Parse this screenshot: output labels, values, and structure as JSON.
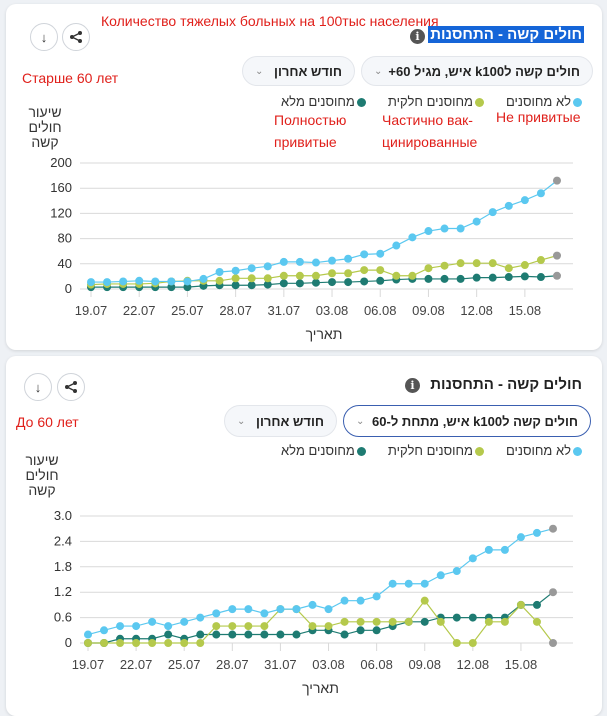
{
  "annotations": {
    "top_title_ru": "Количество тяжелых больных на 100тыс населения",
    "over60": "Старше 60 лет",
    "under60": "До 60 лет",
    "full_ru": [
      "Полностью",
      "привитые"
    ],
    "partial_ru": [
      "Частично вак-",
      "цинированные"
    ],
    "none_ru": "Не привитые"
  },
  "colors": {
    "unvacc": "#5bc8f0",
    "partial": "#b5c94c",
    "full": "#1e7b72",
    "last": "#999999",
    "grid": "#d9d9d9"
  },
  "charts": [
    {
      "title": "חולים קשה - התחסנות",
      "info_icon": "i",
      "download_icon": "↓",
      "filter": "חולים קשה לk100 איש, מגיל 60+",
      "period": "חודש אחרון",
      "ylabel": [
        "שיעור",
        "חולים",
        "קשה"
      ],
      "legend": [
        "לא מחוסנים",
        "מחוסנים חלקית",
        "מחוסנים מלא"
      ]
    },
    {
      "title": "חולים קשה - התחסנות",
      "info_icon": "i",
      "download_icon": "↓",
      "filter": "חולים קשה לk100 איש, מתחת ל-60",
      "period": "חודש אחרון",
      "ylabel": [
        "שיעור",
        "חולים",
        "קשה"
      ],
      "legend": [
        "לא מחוסנים",
        "מחוסנים חלקית",
        "מחוסנים מלא"
      ]
    }
  ],
  "chart_data": [
    {
      "type": "line",
      "title": "חולים קשה - התחסנות",
      "xlabel": "תאריך",
      "ylabel": "שיעור חולים קשה",
      "ylim": [
        0,
        200
      ],
      "yticks": [
        0,
        40,
        80,
        120,
        160,
        200
      ],
      "ytick_labels": [
        "0",
        "40",
        "80",
        "120",
        "160",
        "200"
      ],
      "xtick_labels": [
        "19.07",
        "22.07",
        "25.07",
        "28.07",
        "31.07",
        "03.08",
        "06.08",
        "09.08",
        "12.08",
        "15.08"
      ],
      "x": [
        "19.07",
        "20.07",
        "21.07",
        "22.07",
        "23.07",
        "24.07",
        "25.07",
        "26.07",
        "27.07",
        "28.07",
        "29.07",
        "30.07",
        "31.07",
        "01.08",
        "02.08",
        "03.08",
        "04.08",
        "05.08",
        "06.08",
        "07.08",
        "08.08",
        "09.08",
        "10.08",
        "11.08",
        "12.08",
        "13.08",
        "14.08",
        "15.08",
        "16.08",
        "17.08"
      ],
      "legend_position": "top-right",
      "series": [
        {
          "name": "לא מחוסנים",
          "color": "#5bc8f0",
          "values": [
            11,
            11,
            12,
            13,
            12,
            12,
            12,
            16,
            27,
            29,
            33,
            36,
            43,
            43,
            42,
            45,
            48,
            55,
            56,
            69,
            82,
            92,
            96,
            96,
            107,
            122,
            132,
            141,
            152,
            172
          ]
        },
        {
          "name": "מחוסנים חלקית",
          "color": "#b5c94c",
          "values": [
            7,
            8,
            8,
            8,
            9,
            12,
            13,
            13,
            13,
            17,
            17,
            17,
            21,
            21,
            21,
            25,
            25,
            30,
            30,
            21,
            21,
            33,
            37,
            41,
            41,
            41,
            33,
            38,
            46,
            53
          ]
        },
        {
          "name": "מחוסנים מלא",
          "color": "#1e7b72",
          "values": [
            3,
            3,
            3,
            3,
            3,
            3,
            3,
            5,
            6,
            6,
            6,
            7,
            9,
            9,
            10,
            11,
            11,
            12,
            13,
            15,
            16,
            16,
            16,
            16,
            18,
            18,
            19,
            20,
            19,
            21
          ]
        }
      ]
    },
    {
      "type": "line",
      "title": "חולים קשה - התחסנות",
      "xlabel": "תאריך",
      "ylabel": "שיעור חולים קשה",
      "ylim": [
        0,
        3.0
      ],
      "yticks": [
        0,
        0.6,
        1.2,
        1.8,
        2.4,
        3.0
      ],
      "ytick_labels": [
        "0",
        "0.6",
        "1.2",
        "1.8",
        "2.4",
        "3.0"
      ],
      "xtick_labels": [
        "19.07",
        "22.07",
        "25.07",
        "28.07",
        "31.07",
        "03.08",
        "06.08",
        "09.08",
        "12.08",
        "15.08"
      ],
      "x": [
        "19.07",
        "20.07",
        "21.07",
        "22.07",
        "23.07",
        "24.07",
        "25.07",
        "26.07",
        "27.07",
        "28.07",
        "29.07",
        "30.07",
        "31.07",
        "01.08",
        "02.08",
        "03.08",
        "04.08",
        "05.08",
        "06.08",
        "07.08",
        "08.08",
        "09.08",
        "10.08",
        "11.08",
        "12.08",
        "13.08",
        "14.08",
        "15.08",
        "16.08",
        "17.08"
      ],
      "legend_position": "top-right",
      "series": [
        {
          "name": "לא מחוסנים",
          "color": "#5bc8f0",
          "values": [
            0.2,
            0.3,
            0.4,
            0.4,
            0.5,
            0.4,
            0.5,
            0.6,
            0.7,
            0.8,
            0.8,
            0.7,
            0.8,
            0.8,
            0.9,
            0.8,
            1.0,
            1.0,
            1.1,
            1.4,
            1.4,
            1.4,
            1.6,
            1.7,
            2.0,
            2.2,
            2.2,
            2.5,
            2.6,
            2.7
          ]
        },
        {
          "name": "מחוסנים חלקית",
          "color": "#b5c94c",
          "values": [
            0,
            0,
            0,
            0,
            0,
            0,
            0,
            0,
            0.4,
            0.4,
            0.4,
            0.4,
            0.8,
            0.8,
            0.4,
            0.4,
            0.5,
            0.5,
            0.5,
            0.5,
            0.5,
            1.0,
            0.5,
            0,
            0,
            0.5,
            0.5,
            0.9,
            0.5,
            0
          ]
        },
        {
          "name": "מחוסנים מלא",
          "color": "#1e7b72",
          "values": [
            0,
            0,
            0.1,
            0.1,
            0.1,
            0.2,
            0.1,
            0.2,
            0.2,
            0.2,
            0.2,
            0.2,
            0.2,
            0.2,
            0.3,
            0.3,
            0.2,
            0.3,
            0.3,
            0.4,
            0.5,
            0.5,
            0.6,
            0.6,
            0.6,
            0.6,
            0.6,
            0.9,
            0.9,
            1.2
          ]
        }
      ]
    }
  ]
}
